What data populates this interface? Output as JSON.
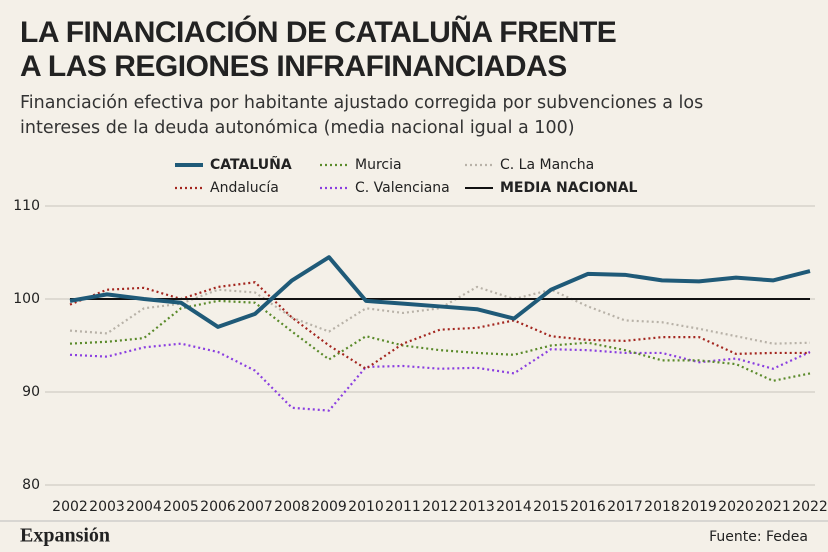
{
  "chart_data": {
    "type": "line",
    "title": [
      "LA FINANCIACIÓN DE CATALUÑA FRENTE",
      "A LAS REGIONES INFRAFINANCIADAS"
    ],
    "subtitle": [
      "Financiación efectiva por habitante ajustado corregida por subvenciones a los",
      "intereses de la deuda autonómica (media nacional igual a 100)"
    ],
    "categories": [
      "2002",
      "2003",
      "2004",
      "2005",
      "2006",
      "2007",
      "2008",
      "2009",
      "2010",
      "2011",
      "2012",
      "2013",
      "2014",
      "2015",
      "2016",
      "2017",
      "2018",
      "2019",
      "2020",
      "2021",
      "2022"
    ],
    "series": [
      {
        "name": "CATALUÑA",
        "color": "#1f5a78",
        "style": "solid",
        "values": [
          99.8,
          100.5,
          100,
          99.6,
          97,
          98.4,
          102,
          104.5,
          99.8,
          99.5,
          99.2,
          98.9,
          97.9,
          101,
          102.7,
          102.6,
          102,
          101.9,
          102.3,
          102,
          103
        ]
      },
      {
        "name": "Andalucía",
        "color": "#a3261f",
        "style": "dotted",
        "values": [
          99.4,
          101,
          101.2,
          100,
          101.3,
          101.8,
          98,
          95,
          92.5,
          95.2,
          96.7,
          96.9,
          97.7,
          96,
          95.6,
          95.5,
          95.9,
          95.9,
          94.1,
          94.2,
          94.2
        ]
      },
      {
        "name": "Murcia",
        "color": "#5a8a2a",
        "style": "dotted",
        "values": [
          95.2,
          95.4,
          95.8,
          99,
          99.8,
          99.6,
          96.5,
          93.5,
          96,
          95,
          94.5,
          94.2,
          94,
          95,
          95.3,
          94.5,
          93.4,
          93.4,
          93,
          91.2,
          92
        ]
      },
      {
        "name": "C. Valenciana",
        "color": "#8a3ee0",
        "style": "dotted",
        "values": [
          94,
          93.8,
          94.8,
          95.2,
          94.3,
          92.3,
          88.3,
          88,
          92.7,
          92.8,
          92.5,
          92.6,
          92,
          94.6,
          94.5,
          94.2,
          94.2,
          93.2,
          93.6,
          92.5,
          94.3
        ]
      },
      {
        "name": "C. La Mancha",
        "color": "#b8b2a8",
        "style": "dotted",
        "values": [
          96.6,
          96.3,
          99,
          99.5,
          101,
          100.7,
          98,
          96.5,
          99,
          98.5,
          99,
          101.3,
          100,
          101,
          99.2,
          97.7,
          97.5,
          96.8,
          96,
          95.2,
          95.3
        ]
      },
      {
        "name": "MEDIA NACIONAL",
        "color": "#111111",
        "style": "solid",
        "values": [
          100,
          100,
          100,
          100,
          100,
          100,
          100,
          100,
          100,
          100,
          100,
          100,
          100,
          100,
          100,
          100,
          100,
          100,
          100,
          100,
          100
        ]
      }
    ],
    "ylim": [
      80,
      110
    ],
    "yticks": [
      80,
      90,
      100,
      110
    ],
    "grid": true,
    "brand": "Expansión",
    "source": "Fuente: Fedea"
  }
}
